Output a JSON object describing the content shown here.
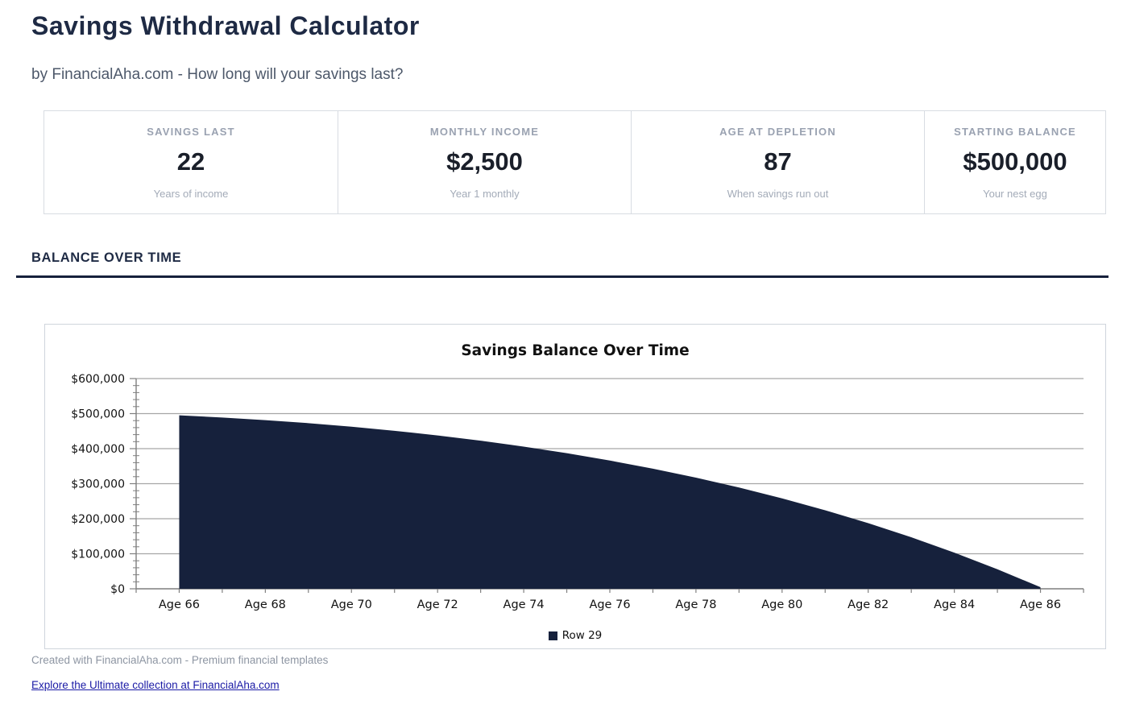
{
  "page": {
    "title": "Savings Withdrawal Calculator",
    "subtitle": "by FinancialAha.com - How long will your savings last?"
  },
  "stats": [
    {
      "label": "SAVINGS LAST",
      "value": "22",
      "caption": "Years of income"
    },
    {
      "label": "MONTHLY INCOME",
      "value": "$2,500",
      "caption": "Year 1 monthly"
    },
    {
      "label": "AGE AT DEPLETION",
      "value": "87",
      "caption": "When savings run out"
    },
    {
      "label": "STARTING BALANCE",
      "value": "$500,000",
      "caption": "Your nest egg"
    }
  ],
  "section": {
    "heading": "BALANCE OVER TIME"
  },
  "chart_data": {
    "type": "area",
    "title": "Savings Balance Over Time",
    "x": [
      66,
      67,
      68,
      69,
      70,
      71,
      72,
      73,
      74,
      75,
      76,
      77,
      78,
      79,
      80,
      81,
      82,
      83,
      84,
      85,
      86
    ],
    "series": [
      {
        "name": "Row 29",
        "color": "#16213c",
        "values": [
          495000,
          488850,
          481450,
          472750,
          462650,
          451000,
          437700,
          422700,
          405850,
          387000,
          366000,
          342800,
          317150,
          288950,
          258000,
          224200,
          187250,
          147050,
          103300,
          55850,
          4500
        ]
      }
    ],
    "xlim": [
      65,
      87
    ],
    "ylim": [
      0,
      600000
    ],
    "x_tick_ages": [
      66,
      68,
      70,
      72,
      74,
      76,
      78,
      80,
      82,
      84,
      86
    ],
    "x_tick_labels": [
      "Age 66",
      "Age 68",
      "Age 70",
      "Age 72",
      "Age 74",
      "Age 76",
      "Age 78",
      "Age 80",
      "Age 82",
      "Age 84",
      "Age 86"
    ],
    "y_tick_values": [
      0,
      100000,
      200000,
      300000,
      400000,
      500000,
      600000
    ],
    "y_tick_labels": [
      "$0",
      "$100,000",
      "$200,000",
      "$300,000",
      "$400,000",
      "$500,000",
      "$600,000"
    ],
    "y_minor_step": 20000,
    "grid": "horizontal",
    "legend": {
      "label": "Row 29",
      "position": "bottom-center"
    }
  },
  "footer": {
    "credit": "Created with FinancialAha.com - Premium financial templates",
    "link": "Explore the Ultimate collection at FinancialAha.com"
  },
  "colors": {
    "accent_navy": "#16213c",
    "heading_navy": "#1e2a44",
    "link_blue": "#1b1ba6",
    "grid_gray": "#a6a6a6",
    "axis_gray": "#7f7f7f"
  }
}
